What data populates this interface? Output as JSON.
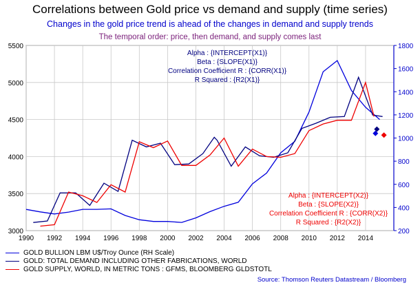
{
  "title": "Correlations between Gold price vs demand and supply (time series)",
  "subtitle1": "Changes in the gold price trend is ahead of the changes in demand and supply trends",
  "subtitle2": "The temporal order: price, then demand, and supply comes last",
  "source": "Source: Thomson Reuters Datastream / Bloomberg",
  "colors": {
    "price": "#0000dd",
    "demand": "#000080",
    "supply": "#ee0000",
    "right_axis": "#0000cc"
  },
  "annotations": {
    "x1": [
      "Alpha : {INTERCEPT(X1)}",
      "Beta : {SLOPE(X1)}",
      "Correlation Coefficient R : {CORR(X1)}",
      "R Squared : {R2(X1)}"
    ],
    "x2": [
      "Alpha : {INTERCEPT(X2)}",
      "Beta : {SLOPE(X2)}",
      "Correlation Coefficient R : {CORR(X2)}",
      "R Squared : {R2(X2)}"
    ]
  },
  "legend": [
    {
      "label": "GOLD BULLION LBM U$/Troy Ounce (RH Scale)",
      "color": "#0000dd"
    },
    {
      "label": "GOLD: TOTAL DEMAND INCLUDING OTHER FABRICATIONS, WORLD",
      "color": "#000080"
    },
    {
      "label": "GOLD SUPPLY, WORLD, IN METRIC TONS : GFMS, BLOOMBERG GLDSTOTL",
      "color": "#ee0000"
    }
  ],
  "chart_data": {
    "type": "line",
    "title": "Correlations between Gold price vs demand and supply (time series)",
    "xlim": [
      1990,
      2016
    ],
    "x_ticks": [
      1990,
      1992,
      1994,
      1996,
      1998,
      2000,
      2002,
      2004,
      2006,
      2008,
      2010,
      2012,
      2014
    ],
    "ylim_left": [
      3000,
      5500
    ],
    "y_ticks_left": [
      3000,
      3500,
      4000,
      4500,
      5000,
      5500
    ],
    "ylim_right": [
      200,
      1800
    ],
    "y_ticks_right": [
      200,
      400,
      600,
      800,
      1000,
      1200,
      1400,
      1600,
      1800
    ],
    "grid": true,
    "legend_position": "bottom",
    "series": [
      {
        "name": "GOLD BULLION LBM U$/Troy Ounce (RH Scale)",
        "axis": "right",
        "x": [
          1990,
          1991,
          1992,
          1993,
          1994,
          1995,
          1996,
          1997,
          1998,
          1999,
          2000,
          2001,
          2002,
          2003,
          2004,
          2005,
          2006,
          2007,
          2008,
          2009,
          2010,
          2011,
          2012,
          2013,
          2014,
          2015
        ],
        "y": [
          383,
          362,
          344,
          360,
          384,
          384,
          388,
          331,
          294,
          279,
          279,
          271,
          310,
          364,
          410,
          445,
          604,
          697,
          872,
          972,
          1225,
          1572,
          1669,
          1411,
          1266,
          1160
        ],
        "marker_last": {
          "x": 2014.7,
          "y": 1040
        }
      },
      {
        "name": "GOLD: TOTAL DEMAND INCLUDING OTHER FABRICATIONS, WORLD",
        "axis": "left",
        "x": [
          1990.5,
          1991.5,
          1992.4,
          1993.5,
          1994.5,
          1995.5,
          1996.5,
          1997.5,
          1998.5,
          1999.5,
          2000.5,
          2001.5,
          2002.5,
          2003.3,
          2003.5,
          2004.5,
          2005.5,
          2006.5,
          2007.5,
          2008.5,
          2009.5,
          2010.5,
          2011.5,
          2012.5,
          2013.5,
          2014.5,
          2015.2
        ],
        "y": [
          3110,
          3130,
          3510,
          3510,
          3340,
          3640,
          3530,
          4220,
          4130,
          4180,
          3890,
          3900,
          4040,
          4260,
          4220,
          3870,
          4130,
          4010,
          3990,
          4050,
          4380,
          4450,
          4530,
          4540,
          5070,
          4560,
          4540
        ],
        "marker_last": {
          "x": 2014.8,
          "y": 4370
        }
      },
      {
        "name": "GOLD SUPPLY, WORLD, IN METRIC TONS : GFMS, BLOOMBERG GLDSTOTL",
        "axis": "left",
        "x": [
          1991,
          1992,
          1993,
          1994,
          1995,
          1996,
          1997,
          1998,
          1999,
          2000,
          2001,
          2002,
          2003,
          2004,
          2005,
          2006,
          2007,
          2008,
          2009,
          2010,
          2011,
          2012,
          2013,
          2014,
          2014.6
        ],
        "y": [
          3060,
          3080,
          3520,
          3470,
          3380,
          3620,
          3520,
          4200,
          4120,
          4210,
          3880,
          3880,
          4020,
          4250,
          3870,
          4100,
          4000,
          3990,
          4040,
          4350,
          4440,
          4490,
          4490,
          5000,
          4540
        ],
        "marker_last": {
          "x": 2015.3,
          "y": 4290
        }
      }
    ]
  }
}
